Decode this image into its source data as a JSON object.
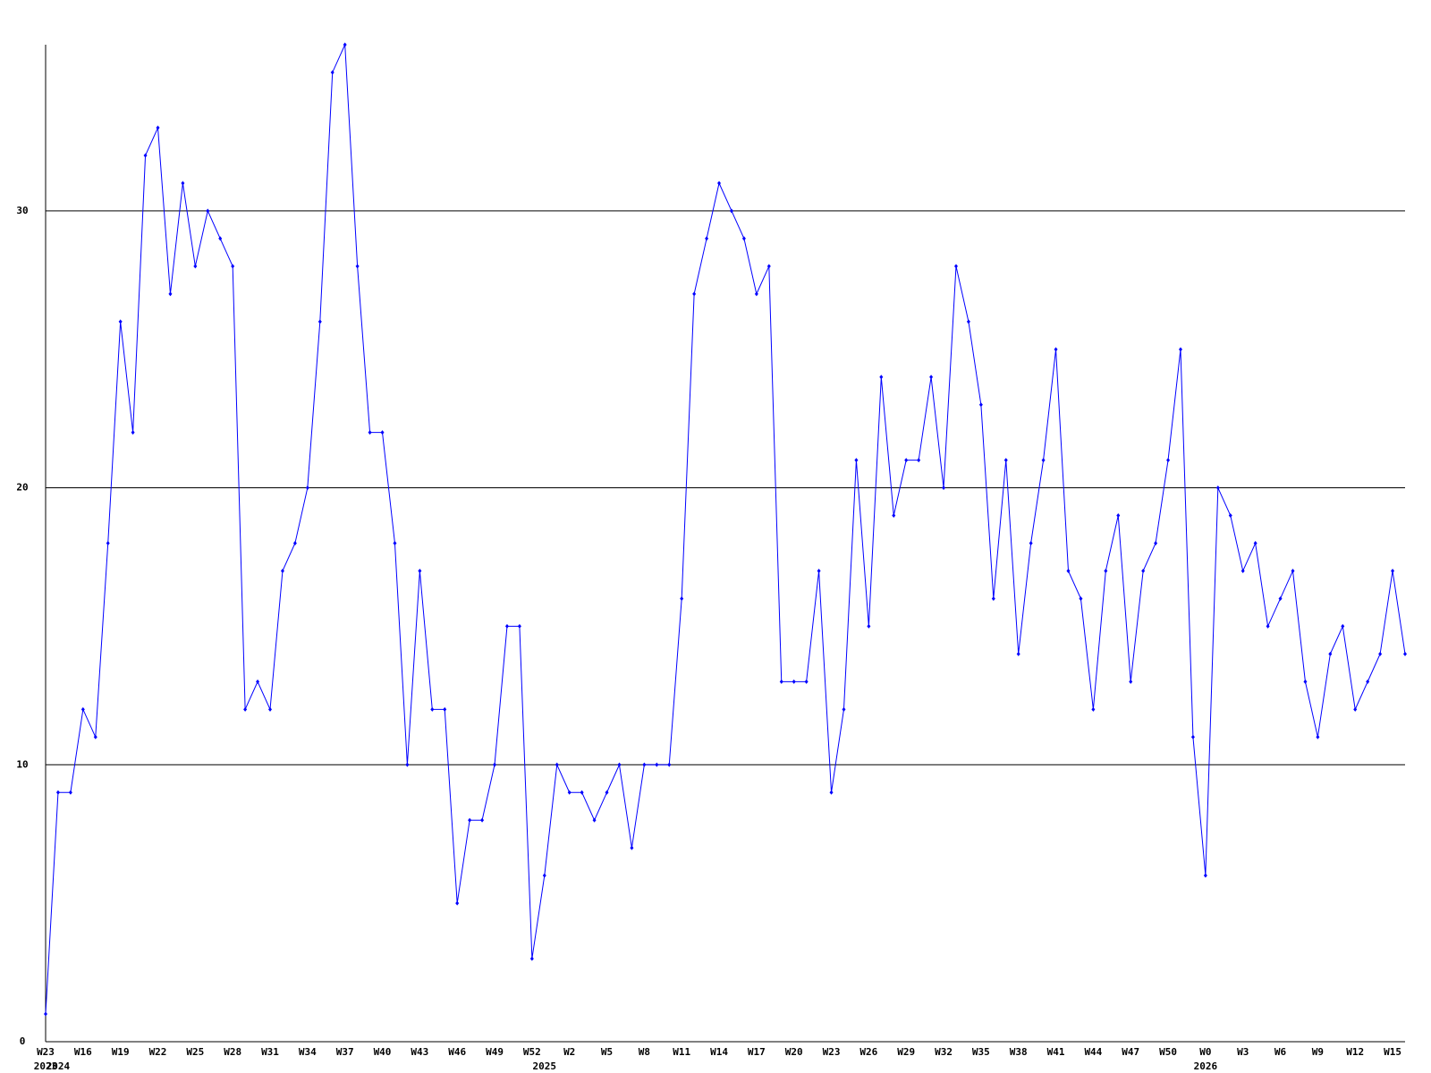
{
  "chart_data": {
    "type": "line",
    "categories": [
      "W23",
      null,
      null,
      "W16",
      null,
      null,
      "W19",
      null,
      null,
      "W22",
      null,
      null,
      "W25",
      null,
      null,
      "W28",
      null,
      null,
      "W31",
      null,
      null,
      "W34",
      null,
      null,
      "W37",
      null,
      null,
      "W40",
      null,
      null,
      "W43",
      null,
      null,
      "W46",
      null,
      null,
      "W49",
      null,
      null,
      "W52",
      null,
      null,
      "W2",
      null,
      null,
      "W5",
      null,
      null,
      "W8",
      null,
      null,
      "W11",
      null,
      null,
      "W14",
      null,
      null,
      "W17",
      null,
      null,
      "W20",
      null,
      null,
      "W23",
      null,
      null,
      "W26",
      null,
      null,
      "W29",
      null,
      null,
      "W32",
      null,
      null,
      "W35",
      null,
      null,
      "W38",
      null,
      null,
      "W41",
      null,
      null,
      "W44",
      null,
      null,
      "W47",
      null,
      null,
      "W50",
      null,
      null,
      "W0",
      null,
      null,
      "W3",
      null,
      null,
      "W6",
      null,
      null,
      "W9",
      null,
      null,
      "W12",
      null,
      null,
      "W15",
      null
    ],
    "years": [
      "2023",
      "2024",
      null,
      null,
      null,
      null,
      null,
      null,
      null,
      null,
      null,
      null,
      null,
      null,
      null,
      null,
      null,
      null,
      null,
      null,
      null,
      null,
      null,
      null,
      null,
      null,
      null,
      null,
      null,
      null,
      null,
      null,
      null,
      null,
      null,
      null,
      null,
      null,
      null,
      null,
      "2025",
      null,
      null,
      null,
      null,
      null,
      null,
      null,
      null,
      null,
      null,
      null,
      null,
      null,
      null,
      null,
      null,
      null,
      null,
      null,
      null,
      null,
      null,
      null,
      null,
      null,
      null,
      null,
      null,
      null,
      null,
      null,
      null,
      null,
      null,
      null,
      null,
      null,
      null,
      null,
      null,
      null,
      null,
      null,
      null,
      null,
      null,
      null,
      null,
      null,
      null,
      null,
      null,
      "2026",
      null,
      null,
      null,
      null,
      null,
      null,
      null,
      null,
      null,
      null,
      null,
      null,
      null,
      null,
      null,
      null
    ],
    "series": [
      {
        "color": "#0000ff",
        "values": [
          1,
          9,
          9,
          12,
          11,
          18,
          26,
          22,
          32,
          33,
          27,
          31,
          28,
          30,
          29,
          28,
          12,
          13,
          12,
          17,
          18,
          20,
          26,
          35,
          36,
          28,
          22,
          22,
          18,
          10,
          17,
          12,
          12,
          5,
          8,
          8,
          10,
          15,
          15,
          3,
          6,
          10,
          9,
          9,
          8,
          9,
          10,
          7,
          10,
          10,
          10,
          16,
          27,
          29,
          31,
          30,
          29,
          27,
          28,
          13,
          13,
          13,
          17,
          9,
          12,
          21,
          15,
          24,
          19,
          21,
          21,
          24,
          20,
          28,
          26,
          23,
          16,
          21,
          14,
          18,
          21,
          25,
          17,
          16,
          12,
          17,
          19,
          13,
          17,
          18,
          21,
          25,
          11,
          6,
          20,
          19,
          17,
          18,
          15,
          16,
          17,
          13,
          11,
          14,
          15,
          12,
          13,
          14,
          17,
          14
        ]
      }
    ],
    "ylim": [
      0,
      36
    ],
    "yticks": [
      0,
      10,
      20,
      30
    ],
    "grid": true
  }
}
